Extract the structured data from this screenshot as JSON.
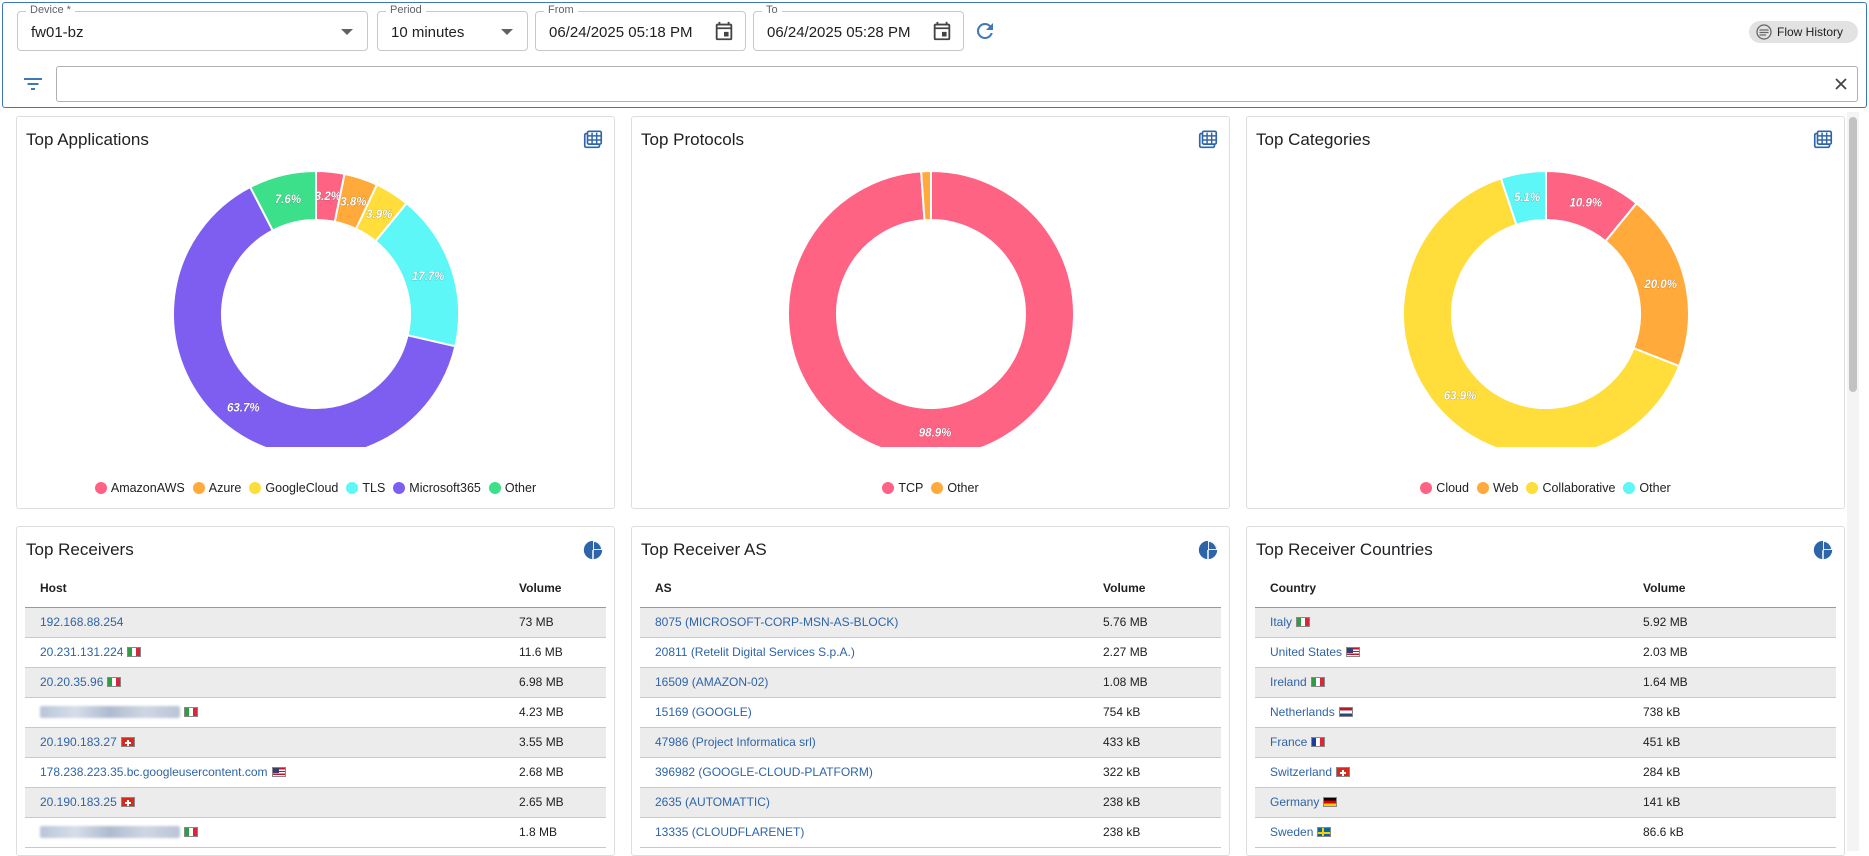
{
  "filters": {
    "device": {
      "label": "Device *",
      "value": "fw01-bz"
    },
    "period": {
      "label": "Period",
      "value": "10 minutes"
    },
    "from": {
      "label": "From",
      "value": "06/24/2025 05:18 PM"
    },
    "to": {
      "label": "To",
      "value": "06/24/2025 05:28 PM"
    },
    "flow_history_label": "Flow History",
    "filter_query": ""
  },
  "colors": {
    "pink": "#ff6384",
    "orange": "#ffaa3b",
    "yellow": "#ffdd3b",
    "cyan": "#5df7f7",
    "purple": "#7e5ef0",
    "green": "#3ce08a",
    "link": "#2e64a8",
    "accent": "#3f78b8"
  },
  "chart_data": [
    {
      "type": "pie",
      "title": "Top Applications",
      "categories": [
        "AmazonAWS",
        "Azure",
        "GoogleCloud",
        "TLS",
        "Microsoft365",
        "Other"
      ],
      "values": [
        3.2,
        3.8,
        3.9,
        17.7,
        63.7,
        7.6
      ],
      "labels": [
        "3.2%",
        "3.8%",
        "3.9%",
        "17.7%",
        "63.7%",
        "7.6%"
      ],
      "colors": [
        "#ff6384",
        "#ffaa3b",
        "#ffdd3b",
        "#5df7f7",
        "#7e5ef0",
        "#3ce08a"
      ],
      "legend": "bottom"
    },
    {
      "type": "pie",
      "title": "Top Protocols",
      "categories": [
        "TCP",
        "Other"
      ],
      "values": [
        98.9,
        1.1
      ],
      "labels": [
        "98.9%",
        ""
      ],
      "colors": [
        "#ff6384",
        "#ffaa3b"
      ],
      "legend": "bottom"
    },
    {
      "type": "pie",
      "title": "Top Categories",
      "categories": [
        "Cloud",
        "Web",
        "Collaborative",
        "Other"
      ],
      "values": [
        10.9,
        20.0,
        63.9,
        5.1
      ],
      "labels": [
        "10.9%",
        "20.0%",
        "63.9%",
        "5.1%"
      ],
      "colors": [
        "#ff6384",
        "#ffaa3b",
        "#ffdd3b",
        "#5df7f7"
      ],
      "legend": "bottom"
    }
  ],
  "tables": {
    "receivers": {
      "title": "Top Receivers",
      "col1": "Host",
      "col2": "Volume",
      "rows": [
        {
          "name": "192.168.88.254",
          "flag": "",
          "volume": "73 MB",
          "blur": false
        },
        {
          "name": "20.231.131.224",
          "flag": "it",
          "volume": "11.6 MB",
          "blur": false
        },
        {
          "name": "20.20.35.96",
          "flag": "it",
          "volume": "6.98 MB",
          "blur": false
        },
        {
          "name": "",
          "flag": "it",
          "volume": "4.23 MB",
          "blur": true
        },
        {
          "name": "20.190.183.27",
          "flag": "ch",
          "volume": "3.55 MB",
          "blur": false
        },
        {
          "name": "178.238.223.35.bc.googleusercontent.com",
          "flag": "us",
          "volume": "2.68 MB",
          "blur": false
        },
        {
          "name": "20.190.183.25",
          "flag": "ch",
          "volume": "2.65 MB",
          "blur": false
        },
        {
          "name": "",
          "flag": "it",
          "volume": "1.8 MB",
          "blur": true
        }
      ]
    },
    "receiver_as": {
      "title": "Top Receiver AS",
      "col1": "AS",
      "col2": "Volume",
      "rows": [
        {
          "name": "8075 (MICROSOFT-CORP-MSN-AS-BLOCK)",
          "flag": "",
          "volume": "5.76 MB"
        },
        {
          "name": "20811 (Retelit Digital Services S.p.A.)",
          "flag": "",
          "volume": "2.27 MB"
        },
        {
          "name": "16509 (AMAZON-02)",
          "flag": "",
          "volume": "1.08 MB"
        },
        {
          "name": "15169 (GOOGLE)",
          "flag": "",
          "volume": "754 kB"
        },
        {
          "name": "47986 (Project Informatica srl)",
          "flag": "",
          "volume": "433 kB"
        },
        {
          "name": "396982 (GOOGLE-CLOUD-PLATFORM)",
          "flag": "",
          "volume": "322 kB"
        },
        {
          "name": "2635 (AUTOMATTIC)",
          "flag": "",
          "volume": "238 kB"
        },
        {
          "name": "13335 (CLOUDFLARENET)",
          "flag": "",
          "volume": "238 kB"
        }
      ]
    },
    "receiver_countries": {
      "title": "Top Receiver Countries",
      "col1": "Country",
      "col2": "Volume",
      "rows": [
        {
          "name": "Italy",
          "flag": "it",
          "volume": "5.92 MB"
        },
        {
          "name": "United States",
          "flag": "us",
          "volume": "2.03 MB"
        },
        {
          "name": "Ireland",
          "flag": "it",
          "volume": "1.64 MB"
        },
        {
          "name": "Netherlands",
          "flag": "nl",
          "volume": "738 kB"
        },
        {
          "name": "France",
          "flag": "fr",
          "volume": "451 kB"
        },
        {
          "name": "Switzerland",
          "flag": "ch",
          "volume": "284 kB"
        },
        {
          "name": "Germany",
          "flag": "de",
          "volume": "141 kB"
        },
        {
          "name": "Sweden",
          "flag": "se",
          "volume": "86.6 kB"
        }
      ]
    }
  }
}
